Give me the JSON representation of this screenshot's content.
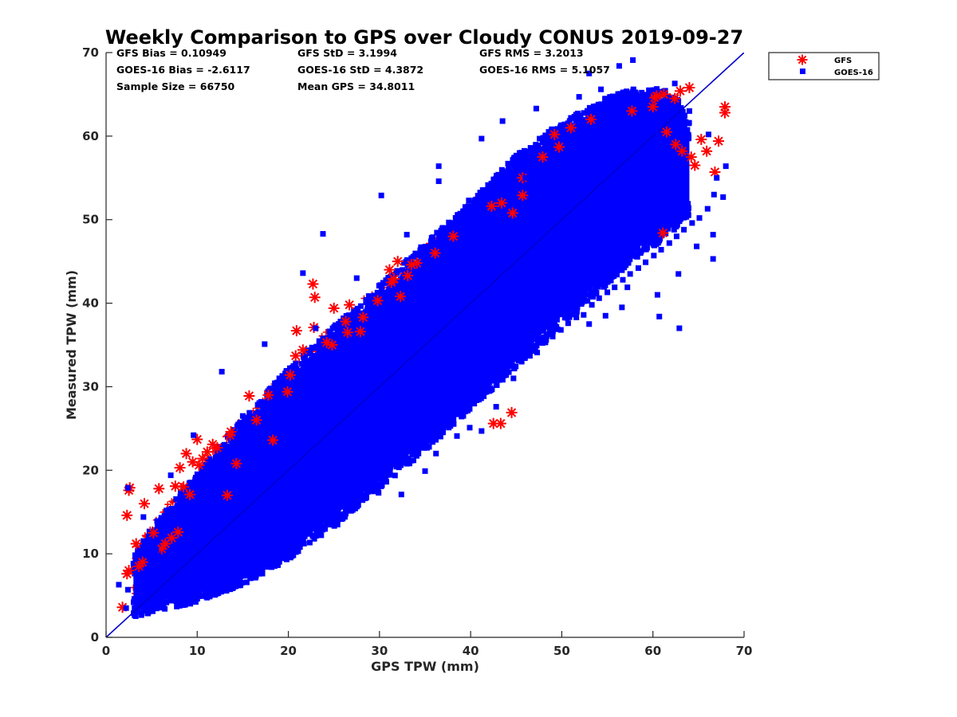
{
  "chart_data": {
    "type": "scatter",
    "title": "Weekly Comparison to GPS over Cloudy CONUS 2019-09-27",
    "xlabel": "GPS TPW (mm)",
    "ylabel": "Measured TPW (mm)",
    "xlim": [
      0,
      70
    ],
    "ylim": [
      0,
      70
    ],
    "x_ticks": [
      "0",
      "10",
      "20",
      "30",
      "40",
      "50",
      "60",
      "70"
    ],
    "y_ticks": [
      "0",
      "10",
      "20",
      "30",
      "40",
      "50",
      "60",
      "70"
    ],
    "grid": false,
    "legend_position": "outside top-right",
    "reference_line": {
      "x": [
        0,
        70
      ],
      "y": [
        0,
        70
      ],
      "color": "#0000cc"
    },
    "annotations": [
      [
        "GFS Bias = 0.10949",
        "GFS StD = 3.1994",
        "GFS RMS = 3.2013"
      ],
      [
        "GOES-16 Bias = -2.6117",
        "GOES-16 StD = 4.3872",
        "GOES-16 RMS = 5.1057"
      ],
      [
        "Sample Size = 66750",
        "Mean GPS = 34.8011",
        ""
      ]
    ],
    "series": [
      {
        "name": "GFS",
        "marker": "asterisk",
        "color": "#ff0000",
        "points": [
          [
            1.8,
            3.6
          ],
          [
            2.3,
            7.6
          ],
          [
            2.5,
            8.0
          ],
          [
            2.3,
            14.6
          ],
          [
            2.5,
            17.6
          ],
          [
            2.6,
            17.9
          ],
          [
            3.3,
            11.2
          ],
          [
            3.6,
            8.5
          ],
          [
            4.0,
            9.0
          ],
          [
            4.2,
            16.0
          ],
          [
            5.2,
            12.5
          ],
          [
            5.8,
            17.8
          ],
          [
            6.1,
            10.6
          ],
          [
            6.5,
            11.2
          ],
          [
            7.2,
            11.9
          ],
          [
            7.6,
            18.1
          ],
          [
            7.9,
            12.6
          ],
          [
            8.1,
            20.3
          ],
          [
            8.5,
            18.0
          ],
          [
            8.8,
            22.0
          ],
          [
            9.2,
            17.1
          ],
          [
            9.5,
            21.0
          ],
          [
            10.0,
            23.7
          ],
          [
            10.2,
            20.6
          ],
          [
            10.6,
            21.4
          ],
          [
            11.1,
            22.2
          ],
          [
            11.7,
            23.1
          ],
          [
            12.2,
            22.7
          ],
          [
            13.6,
            24.2
          ],
          [
            13.7,
            24.6
          ],
          [
            13.3,
            17.0
          ],
          [
            14.3,
            20.8
          ],
          [
            15.7,
            28.9
          ],
          [
            16.5,
            26.0
          ],
          [
            17.8,
            29.0
          ],
          [
            18.3,
            23.6
          ],
          [
            19.9,
            29.4
          ],
          [
            20.2,
            31.4
          ],
          [
            20.8,
            33.7
          ],
          [
            20.9,
            36.7
          ],
          [
            21.6,
            34.4
          ],
          [
            22.7,
            42.3
          ],
          [
            22.9,
            40.7
          ],
          [
            22.8,
            37.1
          ],
          [
            24.2,
            35.3
          ],
          [
            24.8,
            35.0
          ],
          [
            25.0,
            39.4
          ],
          [
            26.3,
            37.8
          ],
          [
            26.5,
            36.5
          ],
          [
            26.7,
            39.8
          ],
          [
            27.9,
            36.6
          ],
          [
            28.2,
            38.3
          ],
          [
            29.8,
            40.3
          ],
          [
            31.1,
            44.0
          ],
          [
            31.3,
            42.5
          ],
          [
            31.6,
            42.9
          ],
          [
            32.0,
            45.0
          ],
          [
            32.3,
            40.8
          ],
          [
            33.1,
            43.3
          ],
          [
            33.5,
            44.6
          ],
          [
            34.1,
            44.8
          ],
          [
            36.1,
            46.0
          ],
          [
            38.1,
            48.0
          ],
          [
            42.3,
            51.6
          ],
          [
            43.4,
            52.0
          ],
          [
            44.6,
            50.8
          ],
          [
            45.7,
            52.9
          ],
          [
            45.7,
            55.0
          ],
          [
            47.9,
            57.5
          ],
          [
            49.2,
            60.2
          ],
          [
            49.7,
            58.7
          ],
          [
            51.0,
            61.0
          ],
          [
            53.2,
            62.0
          ],
          [
            57.7,
            63.0
          ],
          [
            60.0,
            63.5
          ],
          [
            60.4,
            64.8
          ],
          [
            61.2,
            65.0
          ],
          [
            61.5,
            60.5
          ],
          [
            62.4,
            64.5
          ],
          [
            62.5,
            59.0
          ],
          [
            63.0,
            65.4
          ],
          [
            63.2,
            58.2
          ],
          [
            64.0,
            65.8
          ],
          [
            64.2,
            57.5
          ],
          [
            64.6,
            56.5
          ],
          [
            65.3,
            59.6
          ],
          [
            65.9,
            58.2
          ],
          [
            66.8,
            55.7
          ],
          [
            67.2,
            59.4
          ],
          [
            67.9,
            63.5
          ],
          [
            67.9,
            62.8
          ],
          [
            60.2,
            64.6
          ],
          [
            61.1,
            48.4
          ],
          [
            42.5,
            25.6
          ],
          [
            43.3,
            25.6
          ],
          [
            44.5,
            26.9
          ]
        ]
      },
      {
        "name": "GOES-16",
        "marker": "square",
        "color": "#0000ff",
        "points": [
          [
            2.2,
            3.5
          ],
          [
            2.4,
            5.7
          ],
          [
            3.1,
            4.6
          ],
          [
            3.6,
            7.0
          ],
          [
            4.0,
            4.2
          ],
          [
            4.7,
            5.6
          ],
          [
            5.2,
            4.0
          ],
          [
            5.6,
            6.8
          ],
          [
            6.2,
            4.3
          ],
          [
            6.9,
            5.2
          ],
          [
            7.5,
            4.6
          ],
          [
            8.1,
            5.5
          ],
          [
            8.8,
            4.5
          ],
          [
            9.4,
            6.3
          ],
          [
            10.0,
            5.0
          ],
          [
            10.7,
            6.0
          ],
          [
            11.3,
            5.4
          ],
          [
            12.1,
            6.4
          ],
          [
            12.8,
            6.0
          ],
          [
            13.5,
            7.0
          ],
          [
            14.3,
            6.6
          ],
          [
            15.0,
            7.5
          ],
          [
            15.9,
            7.2
          ],
          [
            16.7,
            8.4
          ],
          [
            17.5,
            8.5
          ],
          [
            18.4,
            9.3
          ],
          [
            19.2,
            10.1
          ],
          [
            20.1,
            10.6
          ],
          [
            21.0,
            11.3
          ],
          [
            21.8,
            12.1
          ],
          [
            22.7,
            13.0
          ],
          [
            23.5,
            13.6
          ],
          [
            24.4,
            14.5
          ],
          [
            25.3,
            15.0
          ],
          [
            26.1,
            16.2
          ],
          [
            26.9,
            16.5
          ],
          [
            27.8,
            17.6
          ],
          [
            28.6,
            18.2
          ],
          [
            29.5,
            19.0
          ],
          [
            30.3,
            19.3
          ],
          [
            31.2,
            20.6
          ],
          [
            32.0,
            20.8
          ],
          [
            32.9,
            21.9
          ],
          [
            33.7,
            22.5
          ],
          [
            34.6,
            23.4
          ],
          [
            35.5,
            23.6
          ],
          [
            36.3,
            25.0
          ],
          [
            37.1,
            25.6
          ],
          [
            38.0,
            26.4
          ],
          [
            38.8,
            27.0
          ],
          [
            39.7,
            27.8
          ],
          [
            40.5,
            28.6
          ],
          [
            41.4,
            29.3
          ],
          [
            42.2,
            29.6
          ],
          [
            43.1,
            30.8
          ],
          [
            43.9,
            31.4
          ],
          [
            44.8,
            32.2
          ],
          [
            45.6,
            33.0
          ],
          [
            46.5,
            33.7
          ],
          [
            47.3,
            34.1
          ],
          [
            48.2,
            35.3
          ],
          [
            49.0,
            36.0
          ],
          [
            49.9,
            36.8
          ],
          [
            50.7,
            37.6
          ],
          [
            51.6,
            38.3
          ],
          [
            52.4,
            38.6
          ],
          [
            53.3,
            39.8
          ],
          [
            54.1,
            40.6
          ],
          [
            55.0,
            41.3
          ],
          [
            55.8,
            41.9
          ],
          [
            56.7,
            42.8
          ],
          [
            57.5,
            43.5
          ],
          [
            58.4,
            44.2
          ],
          [
            59.2,
            44.9
          ],
          [
            60.1,
            45.7
          ],
          [
            60.9,
            46.4
          ],
          [
            61.8,
            47.2
          ],
          [
            62.6,
            48.0
          ],
          [
            63.4,
            48.8
          ],
          [
            64.3,
            49.6
          ],
          [
            65.1,
            50.2
          ],
          [
            66.0,
            51.3
          ],
          [
            66.7,
            53.0
          ],
          [
            67.0,
            55.0
          ],
          [
            66.6,
            45.3
          ],
          [
            67.7,
            52.7
          ],
          [
            68.0,
            56.4
          ],
          [
            66.6,
            48.2
          ],
          [
            62.9,
            37.0
          ],
          [
            60.7,
            38.4
          ],
          [
            56.6,
            39.5
          ],
          [
            54.8,
            38.5
          ],
          [
            51.0,
            40.1
          ],
          [
            48.2,
            42.1
          ],
          [
            46.5,
            38.0
          ],
          [
            49.0,
            39.0
          ],
          [
            41.2,
            24.7
          ],
          [
            39.9,
            25.1
          ],
          [
            36.2,
            22.0
          ],
          [
            35.0,
            19.9
          ],
          [
            38.5,
            24.1
          ],
          [
            32.4,
            17.1
          ],
          [
            28.0,
            17.1
          ],
          [
            25.4,
            13.5
          ],
          [
            22.9,
            12.2
          ],
          [
            20.4,
            11.0
          ],
          [
            18.1,
            9.7
          ],
          [
            11.7,
            5.8
          ],
          [
            57.8,
            69.1
          ],
          [
            56.3,
            68.4
          ],
          [
            53.0,
            67.5
          ],
          [
            51.9,
            64.7
          ],
          [
            47.2,
            63.3
          ],
          [
            43.5,
            61.8
          ],
          [
            41.2,
            59.7
          ],
          [
            36.5,
            54.6
          ],
          [
            36.5,
            56.4
          ],
          [
            30.2,
            52.9
          ],
          [
            23.8,
            48.3
          ],
          [
            21.6,
            43.6
          ],
          [
            17.4,
            35.1
          ],
          [
            12.7,
            31.8
          ],
          [
            9.6,
            24.2
          ],
          [
            7.1,
            19.4
          ],
          [
            4.1,
            14.4
          ],
          [
            1.4,
            6.3
          ],
          [
            2.4,
            17.9
          ],
          [
            61.2,
            64.2
          ],
          [
            57.0,
            64.0
          ],
          [
            62.4,
            66.3
          ],
          [
            66.1,
            60.2
          ],
          [
            64.0,
            63.0
          ],
          [
            54.3,
            65.6
          ],
          [
            46.0,
            55.0
          ],
          [
            39.8,
            52.3
          ],
          [
            33.0,
            48.2
          ],
          [
            27.5,
            43.0
          ],
          [
            23.0,
            37.0
          ],
          [
            19.0,
            31.0
          ],
          [
            15.0,
            26.5
          ],
          [
            11.5,
            21.0
          ],
          [
            8.0,
            14.5
          ],
          [
            5.5,
            10.5
          ],
          [
            60.5,
            41.0
          ],
          [
            57.2,
            41.9
          ],
          [
            62.8,
            43.5
          ],
          [
            64.8,
            46.8
          ],
          [
            53.0,
            37.5
          ],
          [
            44.7,
            31.0
          ],
          [
            42.8,
            27.6
          ],
          [
            29.9,
            17.3
          ],
          [
            26.3,
            14.8
          ]
        ]
      }
    ],
    "density_band": {
      "description": "dense cloud of GOES-16 samples, lower and upper bound of the band in data units",
      "x": [
        3,
        5,
        10,
        15,
        20,
        25,
        30,
        35,
        40,
        45,
        50,
        55,
        58,
        61,
        63,
        64
      ],
      "lower": [
        3.5,
        4.2,
        5.4,
        7.5,
        10.5,
        14.5,
        19.0,
        23.5,
        28.5,
        33.5,
        38.5,
        43.5,
        46.5,
        48.5,
        50.5,
        51.5
      ],
      "upper": [
        8.5,
        12.0,
        18.5,
        25.0,
        31.0,
        36.0,
        41.0,
        46.0,
        51.0,
        56.5,
        60.5,
        63.5,
        64.5,
        64.5,
        63.0,
        60.5
      ]
    },
    "gfs_density_band": {
      "x": [
        3,
        5,
        10,
        15,
        20,
        25,
        30,
        35,
        40,
        45,
        50,
        55,
        60,
        63
      ],
      "lower": [
        4.5,
        6.0,
        8.5,
        11.5,
        14.5,
        18.5,
        23.0,
        28.0,
        33.0,
        38.0,
        43.0,
        48.0,
        53.0,
        56.0
      ],
      "upper": [
        10.5,
        13.5,
        20.5,
        26.5,
        32.5,
        37.5,
        42.5,
        47.0,
        51.5,
        56.0,
        60.5,
        63.5,
        65.0,
        65.0
      ]
    }
  }
}
